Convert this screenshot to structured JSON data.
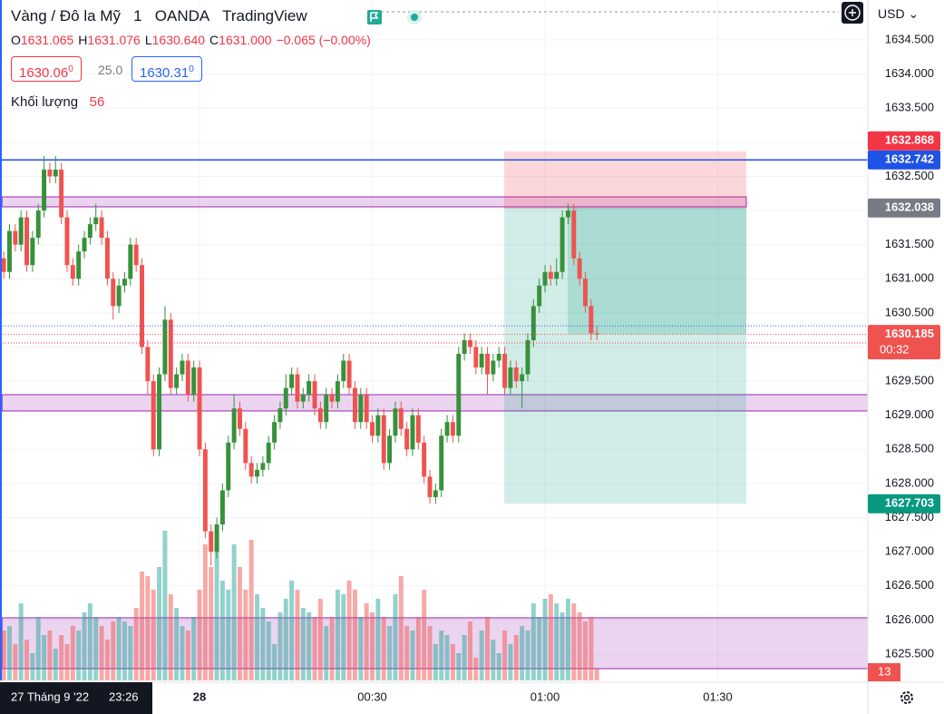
{
  "header": {
    "symbol": "Vàng / Đô la Mỹ",
    "interval": "1",
    "exchange": "OANDA",
    "source": "TradingView",
    "ohlc": [
      {
        "label": "O",
        "value": "1631.065"
      },
      {
        "label": "H",
        "value": "1631.076"
      },
      {
        "label": "L",
        "value": "1630.640"
      },
      {
        "label": "C",
        "value": "1631.000"
      }
    ],
    "change": "−0.065 (−0.00%)",
    "bid_tail": "0",
    "spread": "25.0",
    "ask_tail": "0",
    "volume_label": "Khối lượng",
    "volume_value": "56",
    "currency": "USD",
    "crosshair_date": "27 Tháng 9 '22",
    "crosshair_time": "23:26",
    "countdown": "00:32"
  },
  "chart_data": {
    "type": "candlestick",
    "up_color": "#36923a",
    "down_color": "#ef5350",
    "volume_up_color": "#26a69a",
    "volume_down_color": "#ef5350",
    "candles": [
      [
        1631.3,
        1631.4,
        1631.0,
        1631.1
      ],
      [
        1631.1,
        1631.8,
        1631.0,
        1631.7
      ],
      [
        1631.7,
        1631.8,
        1631.4,
        1631.5
      ],
      [
        1631.5,
        1632.0,
        1631.4,
        1631.9
      ],
      [
        1631.9,
        1632.0,
        1631.1,
        1631.2
      ],
      [
        1631.2,
        1631.7,
        1631.1,
        1631.6
      ],
      [
        1631.6,
        1632.1,
        1631.5,
        1632.0
      ],
      [
        1632.0,
        1632.8,
        1631.9,
        1632.6
      ],
      [
        1632.6,
        1632.7,
        1632.4,
        1632.5
      ],
      [
        1632.5,
        1632.8,
        1632.4,
        1632.6
      ],
      [
        1632.6,
        1632.7,
        1631.8,
        1631.9
      ],
      [
        1631.9,
        1632.0,
        1631.1,
        1631.2
      ],
      [
        1631.2,
        1631.3,
        1630.9,
        1631.0
      ],
      [
        1631.0,
        1631.5,
        1630.9,
        1631.4
      ],
      [
        1631.4,
        1631.7,
        1631.3,
        1631.6
      ],
      [
        1631.6,
        1631.9,
        1631.5,
        1631.8
      ],
      [
        1631.8,
        1632.1,
        1631.7,
        1631.9
      ],
      [
        1631.9,
        1632.0,
        1631.5,
        1631.6
      ],
      [
        1631.6,
        1631.7,
        1630.9,
        1631.0
      ],
      [
        1631.0,
        1631.1,
        1630.4,
        1630.6
      ],
      [
        1630.6,
        1631.0,
        1630.5,
        1630.9
      ],
      [
        1630.9,
        1631.1,
        1630.8,
        1631.0
      ],
      [
        1631.0,
        1631.6,
        1630.9,
        1631.5
      ],
      [
        1631.5,
        1631.6,
        1631.1,
        1631.2
      ],
      [
        1631.2,
        1631.3,
        1629.9,
        1630.0
      ],
      [
        1630.0,
        1630.1,
        1629.3,
        1629.5
      ],
      [
        1629.5,
        1629.6,
        1628.4,
        1628.5
      ],
      [
        1628.5,
        1629.7,
        1628.4,
        1629.6
      ],
      [
        1629.6,
        1630.6,
        1629.5,
        1630.4
      ],
      [
        1630.4,
        1630.5,
        1629.3,
        1629.4
      ],
      [
        1629.4,
        1629.7,
        1629.3,
        1629.6
      ],
      [
        1629.6,
        1629.9,
        1629.5,
        1629.8
      ],
      [
        1629.8,
        1629.9,
        1629.2,
        1629.3
      ],
      [
        1629.3,
        1629.8,
        1629.2,
        1629.7
      ],
      [
        1629.7,
        1629.8,
        1628.4,
        1628.5
      ],
      [
        1628.5,
        1628.6,
        1627.2,
        1627.3
      ],
      [
        1627.3,
        1627.4,
        1626.8,
        1627.0
      ],
      [
        1627.0,
        1627.5,
        1626.9,
        1627.4
      ],
      [
        1627.4,
        1628.0,
        1627.3,
        1627.9
      ],
      [
        1627.9,
        1628.7,
        1627.8,
        1628.6
      ],
      [
        1628.6,
        1629.3,
        1628.5,
        1629.1
      ],
      [
        1629.1,
        1629.2,
        1628.7,
        1628.8
      ],
      [
        1628.8,
        1628.9,
        1628.2,
        1628.3
      ],
      [
        1628.3,
        1628.4,
        1628.0,
        1628.1
      ],
      [
        1628.1,
        1628.3,
        1628.0,
        1628.2
      ],
      [
        1628.2,
        1628.4,
        1628.1,
        1628.3
      ],
      [
        1628.3,
        1628.7,
        1628.2,
        1628.6
      ],
      [
        1628.6,
        1629.0,
        1628.5,
        1628.9
      ],
      [
        1628.9,
        1629.2,
        1628.8,
        1629.1
      ],
      [
        1629.1,
        1629.6,
        1629.0,
        1629.4
      ],
      [
        1629.4,
        1629.7,
        1629.3,
        1629.6
      ],
      [
        1629.6,
        1629.7,
        1629.1,
        1629.2
      ],
      [
        1629.2,
        1629.4,
        1629.1,
        1629.3
      ],
      [
        1629.3,
        1629.6,
        1629.2,
        1629.5
      ],
      [
        1629.5,
        1629.6,
        1629.0,
        1629.1
      ],
      [
        1629.1,
        1629.2,
        1628.8,
        1628.9
      ],
      [
        1628.9,
        1629.4,
        1628.8,
        1629.3
      ],
      [
        1629.3,
        1629.4,
        1629.1,
        1629.2
      ],
      [
        1629.2,
        1629.6,
        1629.1,
        1629.5
      ],
      [
        1629.5,
        1629.9,
        1629.4,
        1629.8
      ],
      [
        1629.8,
        1629.9,
        1629.3,
        1629.4
      ],
      [
        1629.4,
        1629.5,
        1628.8,
        1628.9
      ],
      [
        1628.9,
        1629.4,
        1628.8,
        1629.3
      ],
      [
        1629.3,
        1629.4,
        1628.8,
        1628.9
      ],
      [
        1628.9,
        1629.0,
        1628.6,
        1628.7
      ],
      [
        1628.7,
        1629.1,
        1628.6,
        1629.0
      ],
      [
        1629.0,
        1629.1,
        1628.2,
        1628.3
      ],
      [
        1628.3,
        1628.8,
        1628.2,
        1628.7
      ],
      [
        1628.7,
        1629.2,
        1628.6,
        1629.1
      ],
      [
        1629.1,
        1629.2,
        1628.7,
        1628.8
      ],
      [
        1628.8,
        1628.9,
        1628.4,
        1628.5
      ],
      [
        1628.5,
        1629.1,
        1628.4,
        1629.0
      ],
      [
        1629.0,
        1629.1,
        1628.5,
        1628.6
      ],
      [
        1628.6,
        1628.7,
        1628.0,
        1628.1
      ],
      [
        1628.1,
        1628.2,
        1627.7,
        1627.8
      ],
      [
        1627.8,
        1628.0,
        1627.7,
        1627.9
      ],
      [
        1627.9,
        1628.8,
        1627.8,
        1628.7
      ],
      [
        1628.7,
        1629.0,
        1628.6,
        1628.9
      ],
      [
        1628.9,
        1629.0,
        1628.6,
        1628.7
      ],
      [
        1628.7,
        1630.0,
        1628.6,
        1629.9
      ],
      [
        1629.9,
        1630.2,
        1629.8,
        1630.1
      ],
      [
        1630.1,
        1630.2,
        1629.9,
        1630.0
      ],
      [
        1630.0,
        1630.1,
        1629.6,
        1629.7
      ],
      [
        1629.7,
        1630.0,
        1629.6,
        1629.9
      ],
      [
        1629.9,
        1630.0,
        1629.3,
        1629.6
      ],
      [
        1629.6,
        1629.9,
        1629.5,
        1629.8
      ],
      [
        1629.8,
        1630.0,
        1629.7,
        1629.9
      ],
      [
        1629.9,
        1630.0,
        1629.3,
        1629.4
      ],
      [
        1629.4,
        1629.8,
        1629.3,
        1629.7
      ],
      [
        1629.7,
        1629.8,
        1629.4,
        1629.5
      ],
      [
        1629.5,
        1629.7,
        1629.1,
        1629.6
      ],
      [
        1629.6,
        1630.2,
        1629.5,
        1630.1
      ],
      [
        1630.1,
        1630.7,
        1630.0,
        1630.6
      ],
      [
        1630.6,
        1631.0,
        1630.5,
        1630.9
      ],
      [
        1630.9,
        1631.2,
        1630.8,
        1631.1
      ],
      [
        1631.1,
        1631.2,
        1630.9,
        1631.0
      ],
      [
        1631.0,
        1631.3,
        1630.9,
        1631.1
      ],
      [
        1631.1,
        1632.0,
        1631.0,
        1631.9
      ],
      [
        1631.9,
        1632.1,
        1631.8,
        1632.0
      ],
      [
        1632.0,
        1632.1,
        1631.2,
        1631.3
      ],
      [
        1631.3,
        1631.4,
        1630.9,
        1631.0
      ],
      [
        1631.0,
        1631.1,
        1630.5,
        1630.6
      ],
      [
        1630.6,
        1630.7,
        1630.1,
        1630.2
      ],
      [
        1630.2,
        1630.3,
        1630.1,
        1630.185
      ]
    ],
    "volumes": [
      55,
      60,
      40,
      85,
      45,
      30,
      70,
      50,
      55,
      35,
      50,
      40,
      60,
      55,
      75,
      85,
      70,
      60,
      45,
      65,
      70,
      65,
      60,
      80,
      120,
      115,
      100,
      125,
      165,
      95,
      80,
      60,
      55,
      70,
      100,
      150,
      125,
      150,
      110,
      100,
      150,
      125,
      100,
      155,
      95,
      80,
      65,
      40,
      75,
      90,
      110,
      100,
      80,
      75,
      70,
      90,
      60,
      70,
      100,
      95,
      110,
      100,
      70,
      85,
      75,
      90,
      70,
      60,
      95,
      115,
      60,
      55,
      70,
      100,
      60,
      40,
      55,
      50,
      40,
      30,
      50,
      65,
      25,
      55,
      70,
      45,
      30,
      55,
      40,
      50,
      60,
      55,
      85,
      70,
      90,
      95,
      85,
      75,
      90,
      85,
      75,
      65,
      70,
      13
    ],
    "volume_ylim": [
      0,
      750
    ],
    "xlim": [
      -0.65,
      150.06
    ],
    "xticks": [
      {
        "value": 34,
        "label": "28"
      },
      {
        "value": 64,
        "label": "00:30"
      },
      {
        "value": 94,
        "label": "01:00"
      },
      {
        "value": 124,
        "label": "01:30"
      }
    ],
    "ylim": [
      1625.114,
      1635.085
    ],
    "yticks": [
      {
        "value": 1625.5,
        "label": "1625.500"
      },
      {
        "value": 1626,
        "label": "1626.000"
      },
      {
        "value": 1626.5,
        "label": "1626.500"
      },
      {
        "value": 1627,
        "label": "1627.000"
      },
      {
        "value": 1627.5,
        "label": "1627.500"
      },
      {
        "value": 1628,
        "label": "1628.000"
      },
      {
        "value": 1628.5,
        "label": "1628.500"
      },
      {
        "value": 1629,
        "label": "1629.000"
      },
      {
        "value": 1629.5,
        "label": "1629.500"
      },
      {
        "value": 1630,
        "label": "1630.000"
      },
      {
        "value": 1630.5,
        "label": "1630.500"
      },
      {
        "value": 1631,
        "label": "1631.000"
      },
      {
        "value": 1631.5,
        "label": "1631.500"
      },
      {
        "value": 1632,
        "label": "1632.000"
      },
      {
        "value": 1632.5,
        "label": "1632.500"
      },
      {
        "value": 1633,
        "label": "1633.000"
      },
      {
        "value": 1633.5,
        "label": "1633.500"
      },
      {
        "value": 1634,
        "label": "1634.000"
      },
      {
        "value": 1634.5,
        "label": "1634.500"
      }
    ],
    "grid": true,
    "bid": 1630.06,
    "ask": 1630.31,
    "bid_color": "#f23645",
    "ask_color": "#2962ff",
    "hline": {
      "value": 1632.742,
      "color": "#1e53e5"
    },
    "zones": [
      {
        "x": [
          -0.3,
          128.96
        ],
        "y": [
          1632.054,
          1632.2
        ]
      },
      {
        "x": [
          -0.3,
          150.06
        ],
        "y": [
          1629.063,
          1629.302
        ]
      },
      {
        "x": [
          -0.3,
          150.06
        ],
        "y": [
          1625.287,
          1626.032
        ]
      }
    ],
    "zone_color": "#9c27b0",
    "position": {
      "x": [
        86.91,
        128.96
      ],
      "inner_x": 97.94,
      "stop": 1632.868,
      "entry": 1632.038,
      "target": 1627.703,
      "stop_color": "#f23645",
      "entry_color": "#787b86",
      "target_color": "#089981"
    }
  }
}
